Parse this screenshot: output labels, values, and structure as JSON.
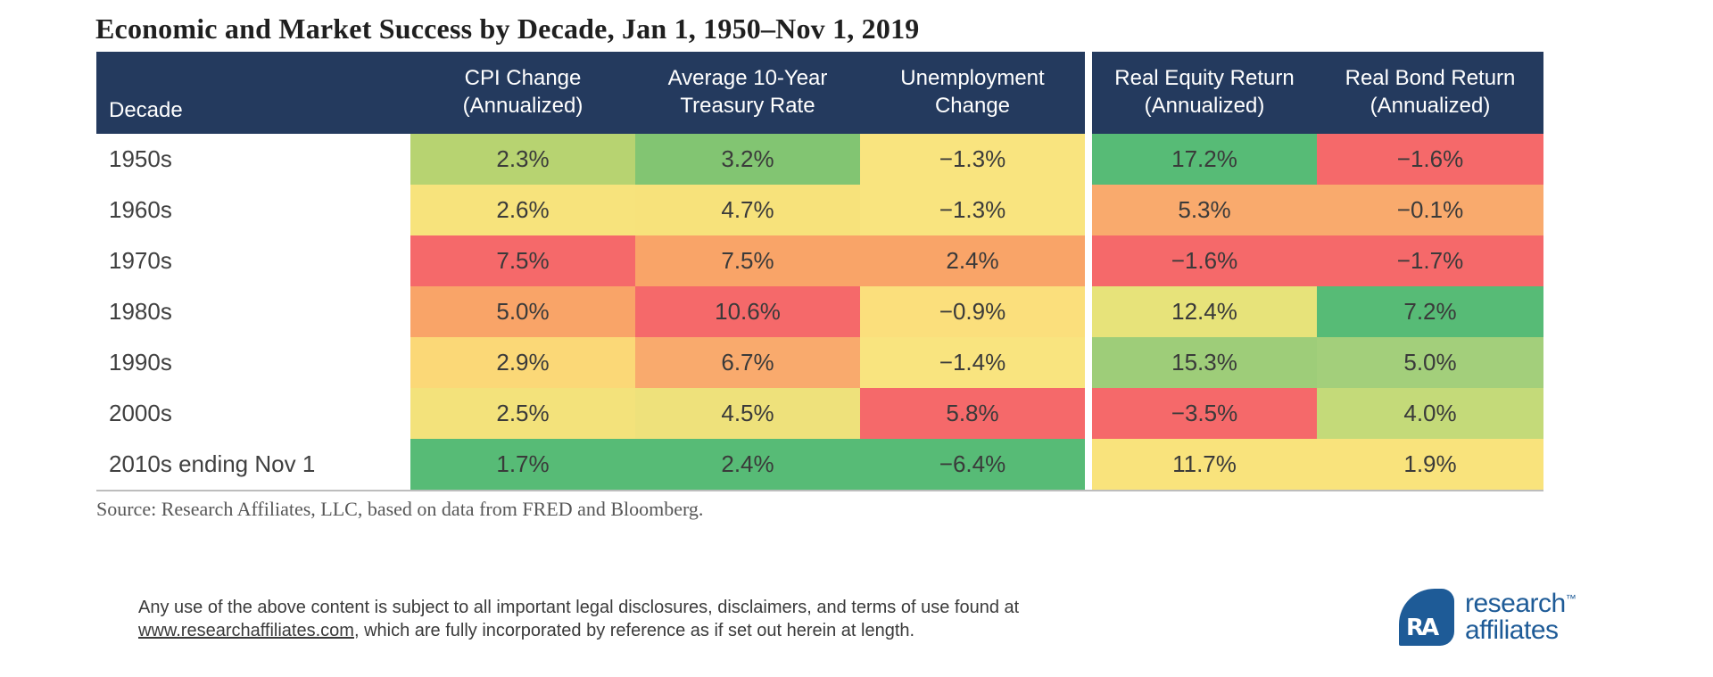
{
  "title": "Economic and Market Success by Decade, Jan 1, 1950–Nov 1, 2019",
  "source": "Source: Research Affiliates, LLC, based on data from FRED and Bloomberg.",
  "colors": {
    "header_bg": "#243a5e",
    "brand_blue": "#1e5b97",
    "table_bottom_border": "#bdbdbd",
    "heat_green_strong": "#57bb76",
    "heat_green_light": "#9ecd79",
    "heat_yellow_green": "#c4da79",
    "heat_yellow": "#f7e37c",
    "heat_orange": "#f9aa6d",
    "heat_red": "#f5696a"
  },
  "table": {
    "columns": [
      {
        "line1": "Decade",
        "line2": ""
      },
      {
        "line1": "CPI Change",
        "line2": "(Annualized)"
      },
      {
        "line1": "Average 10-Year",
        "line2": "Treasury Rate"
      },
      {
        "line1": "Unemployment",
        "line2": "Change"
      },
      {
        "line1": "Real Equity Return",
        "line2": "(Annualized)"
      },
      {
        "line1": "Real Bond Return",
        "line2": "(Annualized)"
      }
    ],
    "rows": [
      {
        "decade": "1950s",
        "cells": [
          {
            "value": "2.3%",
            "bg": "#b7d371"
          },
          {
            "value": "3.2%",
            "bg": "#82c572"
          },
          {
            "value": "−1.3%",
            "bg": "#f9e47f"
          },
          {
            "value": "17.2%",
            "bg": "#57bb76"
          },
          {
            "value": "−1.6%",
            "bg": "#f5696a"
          }
        ]
      },
      {
        "decade": "1960s",
        "cells": [
          {
            "value": "2.6%",
            "bg": "#f7e37c"
          },
          {
            "value": "4.7%",
            "bg": "#f7e27b"
          },
          {
            "value": "−1.3%",
            "bg": "#f9e47f"
          },
          {
            "value": "5.3%",
            "bg": "#f9aa6d"
          },
          {
            "value": "−0.1%",
            "bg": "#f9aa6d"
          }
        ]
      },
      {
        "decade": "1970s",
        "cells": [
          {
            "value": "7.5%",
            "bg": "#f5696a"
          },
          {
            "value": "7.5%",
            "bg": "#f9a468"
          },
          {
            "value": "2.4%",
            "bg": "#f9a468"
          },
          {
            "value": "−1.6%",
            "bg": "#f5696a"
          },
          {
            "value": "−1.7%",
            "bg": "#f5696a"
          }
        ]
      },
      {
        "decade": "1980s",
        "cells": [
          {
            "value": "5.0%",
            "bg": "#f9a468"
          },
          {
            "value": "10.6%",
            "bg": "#f5696a"
          },
          {
            "value": "−0.9%",
            "bg": "#fbdf7c"
          },
          {
            "value": "12.4%",
            "bg": "#e7e37a"
          },
          {
            "value": "7.2%",
            "bg": "#57bb76"
          }
        ]
      },
      {
        "decade": "1990s",
        "cells": [
          {
            "value": "2.9%",
            "bg": "#fbd877"
          },
          {
            "value": "6.7%",
            "bg": "#f9aa6d"
          },
          {
            "value": "−1.4%",
            "bg": "#f9e47f"
          },
          {
            "value": "15.3%",
            "bg": "#9ecd79"
          },
          {
            "value": "5.0%",
            "bg": "#a3cf7b"
          }
        ]
      },
      {
        "decade": "2000s",
        "cells": [
          {
            "value": "2.5%",
            "bg": "#f3e27b"
          },
          {
            "value": "4.5%",
            "bg": "#eee17b"
          },
          {
            "value": "5.8%",
            "bg": "#f5696a"
          },
          {
            "value": "−3.5%",
            "bg": "#f5696a"
          },
          {
            "value": "4.0%",
            "bg": "#c4da79"
          }
        ]
      },
      {
        "decade": "2010s ending Nov 1",
        "cells": [
          {
            "value": "1.7%",
            "bg": "#57bb76"
          },
          {
            "value": "2.4%",
            "bg": "#57bb76"
          },
          {
            "value": "−6.4%",
            "bg": "#57bb76"
          },
          {
            "value": "11.7%",
            "bg": "#f9e37c"
          },
          {
            "value": "1.9%",
            "bg": "#f9e37c"
          }
        ]
      }
    ]
  },
  "chart_data": {
    "type": "table",
    "title": "Economic and Market Success by Decade, Jan 1, 1950–Nov 1, 2019",
    "categories": [
      "1950s",
      "1960s",
      "1970s",
      "1980s",
      "1990s",
      "2000s",
      "2010s ending Nov 1"
    ],
    "series": [
      {
        "name": "CPI Change (Annualized)",
        "unit": "%",
        "values": [
          2.3,
          2.6,
          7.5,
          5.0,
          2.9,
          2.5,
          1.7
        ]
      },
      {
        "name": "Average 10-Year Treasury Rate",
        "unit": "%",
        "values": [
          3.2,
          4.7,
          7.5,
          10.6,
          6.7,
          4.5,
          2.4
        ]
      },
      {
        "name": "Unemployment Change",
        "unit": "%",
        "values": [
          -1.3,
          -1.3,
          2.4,
          -0.9,
          -1.4,
          5.8,
          -6.4
        ]
      },
      {
        "name": "Real Equity Return (Annualized)",
        "unit": "%",
        "values": [
          17.2,
          5.3,
          -1.6,
          12.4,
          15.3,
          -3.5,
          11.7
        ]
      },
      {
        "name": "Real Bond Return (Annualized)",
        "unit": "%",
        "values": [
          -1.6,
          -0.1,
          -1.7,
          7.2,
          5.0,
          4.0,
          1.9
        ]
      }
    ],
    "layout": "heatmap-colored cells, red (bad) to yellow to green (good), white vertical divider between economic columns and return columns"
  },
  "footer": {
    "line1": "Any use of the above content is subject to all important legal disclosures, disclaimers, and terms of use found at",
    "line2_link": "www.researchaffiliates.com",
    "line2_text": ", which are fully incorporated by reference as if set out herein at length."
  },
  "logo": {
    "monogram": "RA",
    "name_line1": "research",
    "tm": "™",
    "name_line2": "affiliates"
  }
}
